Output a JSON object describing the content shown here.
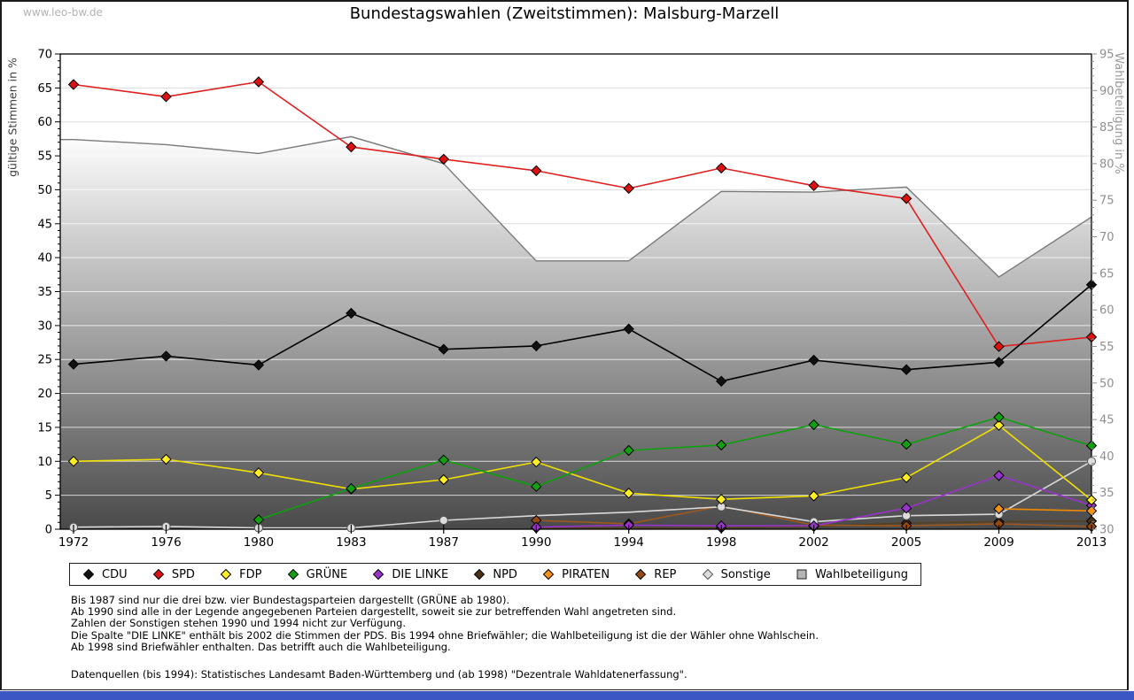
{
  "page": {
    "watermark": "www.leo-bw.de",
    "title": "Bundestagswahlen (Zweitstimmen): Malsburg-Marzell"
  },
  "chart_data": {
    "type": "line",
    "title": "Bundestagswahlen (Zweitstimmen): Malsburg-Marzell",
    "categories": [
      "1972",
      "1976",
      "1980",
      "1983",
      "1987",
      "1990",
      "1994",
      "1998",
      "2002",
      "2005",
      "2009",
      "2013"
    ],
    "left_axis": {
      "label": "gültige Stimmen in %",
      "min": 0,
      "max": 70,
      "tick_step": 5,
      "minor_step": 1
    },
    "right_axis": {
      "label": "Wahlbeteiligung in %",
      "min": 30,
      "max": 95,
      "tick_step": 5,
      "minor_step": 1
    },
    "grid": true,
    "gridline_color": "#dcdcdc",
    "series": [
      {
        "name": "CDU",
        "color": "#000000",
        "marker_fill": "#111111",
        "marker": "diamond",
        "z": 9,
        "values": [
          24.3,
          25.5,
          24.2,
          31.8,
          26.5,
          27.0,
          29.5,
          21.8,
          24.9,
          23.5,
          24.6,
          36.0
        ]
      },
      {
        "name": "SPD",
        "color": "#e02020",
        "marker_fill": "#dd1111",
        "marker": "diamond",
        "z": 8,
        "values": [
          65.5,
          63.7,
          65.9,
          56.3,
          54.5,
          52.8,
          50.2,
          53.2,
          50.6,
          48.7,
          26.9,
          28.3
        ]
      },
      {
        "name": "FDP",
        "color": "#f0e000",
        "marker_fill": "#ffee22",
        "marker": "diamond",
        "z": 6,
        "values": [
          10.0,
          10.3,
          8.3,
          5.9,
          7.3,
          9.9,
          5.3,
          4.4,
          4.9,
          7.6,
          15.3,
          4.3
        ]
      },
      {
        "name": "GRÜNE",
        "color": "#0ca00c",
        "marker_fill": "#12a012",
        "marker": "diamond",
        "z": 7,
        "values": [
          null,
          null,
          1.4,
          6.0,
          10.2,
          6.3,
          11.6,
          12.4,
          15.4,
          12.5,
          16.5,
          12.3
        ]
      },
      {
        "name": "DIE LINKE",
        "color": "#9933cc",
        "marker_fill": "#9933cc",
        "marker": "diamond",
        "z": 4,
        "values": [
          null,
          null,
          null,
          null,
          null,
          0.3,
          0.6,
          0.5,
          0.5,
          3.1,
          7.9,
          3.5
        ]
      },
      {
        "name": "NPD",
        "color": "#57401f",
        "marker_fill": "#4a3118",
        "marker": "diamond",
        "z": 1,
        "values": [
          null,
          null,
          null,
          null,
          null,
          0.2,
          null,
          0.2,
          0.4,
          0.9,
          1.1,
          1.2
        ]
      },
      {
        "name": "PIRATEN",
        "color": "#f08a00",
        "marker_fill": "#f59214",
        "marker": "diamond",
        "z": 5,
        "values": [
          null,
          null,
          null,
          null,
          null,
          null,
          null,
          null,
          null,
          null,
          3.0,
          2.7
        ]
      },
      {
        "name": "REP",
        "color": "#9e571c",
        "marker_fill": "#96490f",
        "marker": "diamond",
        "z": 2,
        "values": [
          null,
          null,
          null,
          null,
          null,
          1.3,
          0.8,
          3.4,
          0.6,
          0.5,
          0.8,
          0.4
        ]
      },
      {
        "name": "Sonstige",
        "color": "#d9d9d9",
        "marker_fill": "#dcdcdc",
        "marker": "circle",
        "marker_stroke": "#555555",
        "z": 3,
        "no_marker_years": [
          "1990",
          "1994"
        ],
        "values": [
          0.3,
          0.4,
          0.2,
          0.2,
          1.3,
          2.0,
          2.5,
          3.3,
          1.1,
          2.0,
          2.2,
          10.0
        ]
      }
    ],
    "turnout": {
      "name": "Wahlbeteiligung",
      "axis": "right",
      "area_stroke": "#7a7a7a",
      "area_top": "#fdfdfd",
      "area_bottom": "#4a4a4a",
      "legend_fill": "#b4b4b4",
      "values": [
        83.3,
        82.6,
        81.4,
        83.7,
        80.0,
        66.7,
        66.7,
        76.2,
        76.1,
        76.8,
        64.5,
        72.7
      ]
    }
  },
  "footnotes": [
    "Bis 1987 sind nur die drei bzw. vier Bundestagsparteien dargestellt (GRÜNE ab 1980).",
    "Ab 1990 sind alle in der Legende angegebenen Parteien dargestellt, soweit sie zur betreffenden Wahl angetreten sind.",
    "Zahlen der Sonstigen stehen 1990 und 1994 nicht zur Verfügung.",
    "Die Spalte \"DIE LINKE\" enthält bis 2002 die Stimmen der PDS. Bis 1994 ohne Briefwähler; die Wahlbeteiligung ist die der Wähler ohne Wahlschein.",
    "Ab 1998 sind Briefwähler enthalten. Das betrifft auch die Wahlbeteiligung."
  ],
  "source": "Datenquellen (bis 1994): Statistisches Landesamt Baden-Württemberg und (ab 1998) \"Dezentrale Wahldatenerfassung\"."
}
